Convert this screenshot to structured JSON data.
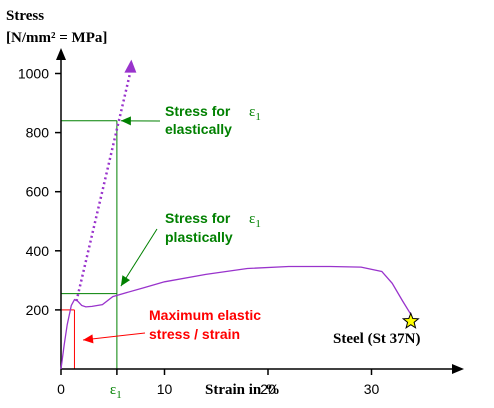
{
  "chart_data": {
    "type": "line",
    "ylabel_line1": "Stress",
    "ylabel_line2": "[N/mm² = MPa]",
    "xlabel": "Strain in %",
    "x_ticks": [
      "0",
      "10",
      "20",
      "30"
    ],
    "x_tick_values": [
      0,
      10,
      20,
      30
    ],
    "x_marker_label": "ε1",
    "y_ticks": [
      "200",
      "400",
      "600",
      "800",
      "1000"
    ],
    "y_tick_values": [
      200,
      400,
      600,
      800,
      1000
    ],
    "xlim": [
      0,
      38
    ],
    "ylim": [
      0,
      1050
    ],
    "series": [
      {
        "color": "#9933cc",
        "x": [
          0.0,
          0.3,
          0.6,
          1.0,
          1.3,
          1.6,
          2.0,
          2.4,
          3.0,
          3.5,
          4.0,
          5.0,
          6.0,
          8.0,
          10.0,
          14.0,
          18.0,
          22.0,
          26.0,
          29.0,
          31.0,
          32.0,
          33.0,
          33.8
        ],
        "y": [
          0,
          80,
          150,
          215,
          235,
          230,
          215,
          210,
          212,
          215,
          218,
          245,
          255,
          275,
          295,
          320,
          340,
          347,
          347,
          345,
          330,
          290,
          230,
          185
        ]
      },
      {
        "color": "#9933cc",
        "style": "dotted-extension",
        "x": [
          1.5,
          6.8
        ],
        "y": [
          230,
          1020
        ]
      }
    ],
    "annotations": [
      {
        "text_line1": "Stress for",
        "text_line2": "elastically",
        "symbol": "ε1",
        "color": "#008000",
        "points_to": [
          5.4,
          840
        ]
      },
      {
        "text_line1": "Stress for",
        "text_line2": "plastically",
        "symbol": "ε1",
        "color": "#008000",
        "points_to": [
          5.4,
          260
        ]
      },
      {
        "text_line1": "Maximum elastic",
        "text_line2": "stress / strain",
        "color": "#ff0000",
        "points_to": [
          2.1,
          100
        ]
      }
    ],
    "green_reference": {
      "x": 5.4,
      "y_elastic": 840,
      "y_plastic": 255
    },
    "red_reference": {
      "x": 1.3,
      "y": 200
    },
    "end_label": "Steel (St 37N)",
    "end_point": [
      33.8,
      175
    ],
    "colors": {
      "curve": "#9933cc",
      "green": "#008000",
      "red": "#ff0000",
      "star": "#ffff00",
      "axes": "#000000"
    }
  }
}
